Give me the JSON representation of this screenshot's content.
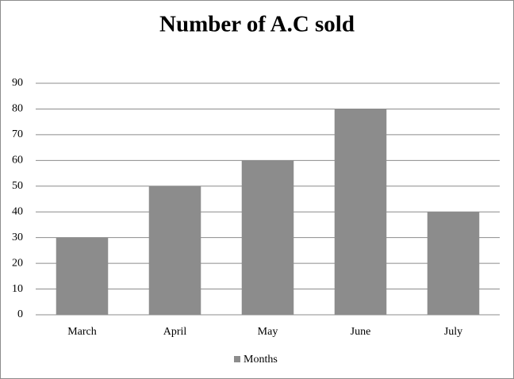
{
  "chart_data": {
    "type": "bar",
    "title": "Number of A.C sold",
    "categories": [
      "March",
      "April",
      "May",
      "June",
      "July"
    ],
    "series": [
      {
        "name": "Months",
        "color": "#8c8c8c",
        "values": [
          30,
          50,
          60,
          80,
          40
        ]
      }
    ],
    "ylim": [
      0,
      90
    ],
    "yticks": [
      0,
      10,
      20,
      30,
      40,
      50,
      60,
      70,
      80,
      90
    ],
    "grid": true,
    "legend": "bottom"
  }
}
